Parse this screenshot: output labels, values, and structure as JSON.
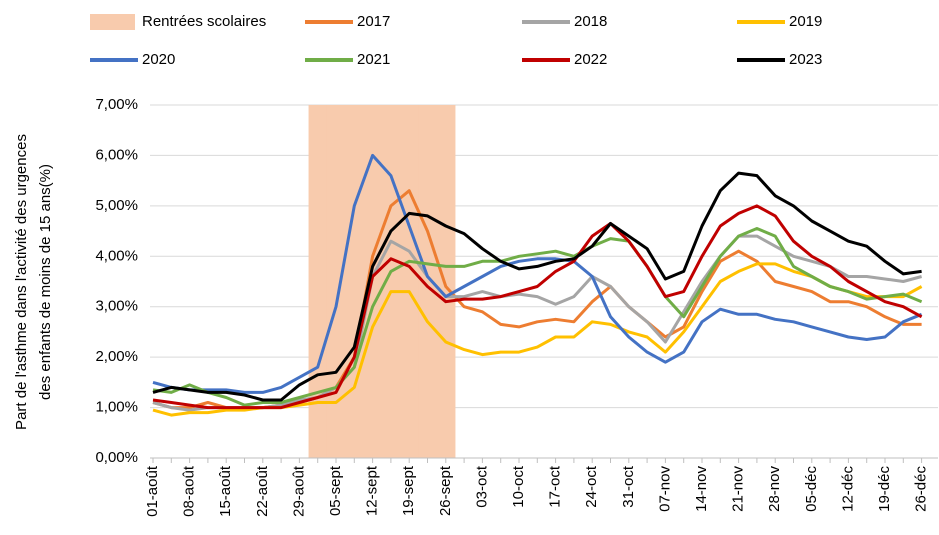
{
  "chart_data": {
    "type": "line",
    "ylabel": [
      "Part de l'asthme dans l'activité des urgences",
      "des enfants de moins de 15 ans(%)"
    ],
    "categories": [
      "01-août",
      null,
      "08-août",
      null,
      "15-août",
      null,
      "22-août",
      null,
      "29-août",
      null,
      "05-sept",
      null,
      "12-sept",
      null,
      "19-sept",
      null,
      "26-sept",
      null,
      "03-oct",
      null,
      "10-oct",
      null,
      "17-oct",
      null,
      "24-oct",
      null,
      "31-oct",
      null,
      "07-nov",
      null,
      "14-nov",
      null,
      "21-nov",
      null,
      "28-nov",
      null,
      "05-déc",
      null,
      "12-déc",
      null,
      "19-déc",
      null,
      "26-déc"
    ],
    "ylim": [
      0,
      7
    ],
    "yticks": [
      {
        "value": 0,
        "label": "0,00%"
      },
      {
        "value": 1,
        "label": "1,00%"
      },
      {
        "value": 2,
        "label": "2,00%"
      },
      {
        "value": 3,
        "label": "3,00%"
      },
      {
        "value": 4,
        "label": "4,00%"
      },
      {
        "value": 5,
        "label": "5,00%"
      },
      {
        "value": 6,
        "label": "6,00%"
      },
      {
        "value": 7,
        "label": "7,00%"
      }
    ],
    "grid": true,
    "series": [
      {
        "name": "Rentrées scolaires",
        "type": "bar",
        "color": "#f8cbad",
        "values": [
          null,
          null,
          null,
          null,
          null,
          null,
          null,
          null,
          null,
          7,
          7,
          7,
          7,
          7,
          7,
          7,
          7,
          null,
          null,
          null,
          null,
          null,
          null,
          null,
          null,
          null,
          null,
          null,
          null,
          null,
          null,
          null,
          null,
          null,
          null,
          null,
          null,
          null,
          null,
          null,
          null,
          null,
          null
        ]
      },
      {
        "name": "2017",
        "color": "#ed7d31",
        "values": [
          1.1,
          1.0,
          1.0,
          1.1,
          1.0,
          1.0,
          1.0,
          1.05,
          1.1,
          1.2,
          1.4,
          2.0,
          4.0,
          5.0,
          5.3,
          4.5,
          3.4,
          3.0,
          2.9,
          2.65,
          2.6,
          2.7,
          2.75,
          2.7,
          3.1,
          3.4,
          3.0,
          2.7,
          2.4,
          2.6,
          3.3,
          3.9,
          4.1,
          3.9,
          3.5,
          3.4,
          3.3,
          3.1,
          3.1,
          3.0,
          2.8,
          2.65,
          2.65
        ]
      },
      {
        "name": "2018",
        "color": "#a5a5a5",
        "values": [
          1.1,
          1.0,
          0.95,
          1.0,
          1.0,
          1.0,
          1.0,
          1.05,
          1.15,
          1.2,
          1.4,
          1.8,
          3.6,
          4.3,
          4.1,
          3.6,
          3.2,
          3.2,
          3.3,
          3.2,
          3.25,
          3.2,
          3.05,
          3.2,
          3.6,
          3.4,
          3.0,
          2.7,
          2.3,
          2.9,
          3.5,
          4.0,
          4.4,
          4.4,
          4.2,
          4.0,
          3.9,
          3.8,
          3.6,
          3.6,
          3.55,
          3.5,
          3.6
        ]
      },
      {
        "name": "2019",
        "color": "#ffc000",
        "values": [
          0.95,
          0.85,
          0.9,
          0.9,
          0.95,
          0.95,
          1.0,
          1.0,
          1.05,
          1.1,
          1.1,
          1.4,
          2.6,
          3.3,
          3.3,
          2.7,
          2.3,
          2.15,
          2.05,
          2.1,
          2.1,
          2.2,
          2.4,
          2.4,
          2.7,
          2.65,
          2.5,
          2.4,
          2.1,
          2.5,
          3.0,
          3.5,
          3.7,
          3.85,
          3.85,
          3.7,
          3.6,
          3.4,
          3.3,
          3.2,
          3.2,
          3.2,
          3.4
        ]
      },
      {
        "name": "2020",
        "color": "#4472c4",
        "values": [
          1.5,
          1.4,
          1.35,
          1.35,
          1.35,
          1.3,
          1.3,
          1.4,
          1.6,
          1.8,
          3.0,
          5.0,
          6.0,
          5.6,
          4.6,
          3.6,
          3.2,
          3.4,
          3.6,
          3.8,
          3.9,
          3.95,
          3.95,
          3.9,
          3.6,
          2.8,
          2.4,
          2.1,
          1.9,
          2.1,
          2.7,
          2.95,
          2.85,
          2.85,
          2.75,
          2.7,
          2.6,
          2.5,
          2.4,
          2.35,
          2.4,
          2.7,
          2.85
        ]
      },
      {
        "name": "2021",
        "color": "#70ad47",
        "values": [
          1.35,
          1.3,
          1.45,
          1.3,
          1.2,
          1.05,
          1.1,
          1.1,
          1.2,
          1.3,
          1.4,
          1.8,
          3.0,
          3.7,
          3.9,
          3.85,
          3.8,
          3.8,
          3.9,
          3.9,
          4.0,
          4.05,
          4.1,
          4.0,
          4.2,
          4.35,
          4.3,
          3.8,
          3.2,
          2.8,
          3.4,
          4.0,
          4.4,
          4.55,
          4.4,
          3.8,
          3.6,
          3.4,
          3.3,
          3.15,
          3.2,
          3.25,
          3.1
        ]
      },
      {
        "name": "2022",
        "color": "#c00000",
        "values": [
          1.15,
          1.1,
          1.05,
          1.0,
          1.0,
          1.0,
          1.0,
          1.0,
          1.1,
          1.2,
          1.3,
          2.0,
          3.6,
          3.95,
          3.8,
          3.4,
          3.1,
          3.15,
          3.15,
          3.2,
          3.3,
          3.4,
          3.7,
          3.9,
          4.4,
          4.65,
          4.3,
          3.8,
          3.2,
          3.3,
          4.0,
          4.6,
          4.85,
          5.0,
          4.8,
          4.3,
          4.0,
          3.8,
          3.5,
          3.3,
          3.1,
          3.0,
          2.8
        ]
      },
      {
        "name": "2023",
        "color": "#000000",
        "values": [
          1.3,
          1.4,
          1.35,
          1.3,
          1.3,
          1.25,
          1.15,
          1.15,
          1.45,
          1.65,
          1.7,
          2.2,
          3.8,
          4.5,
          4.85,
          4.8,
          4.6,
          4.45,
          4.15,
          3.9,
          3.75,
          3.8,
          3.9,
          3.95,
          4.2,
          4.65,
          4.4,
          4.15,
          3.55,
          3.7,
          4.6,
          5.3,
          5.65,
          5.6,
          5.2,
          5.0,
          4.7,
          4.5,
          4.3,
          4.2,
          3.9,
          3.65,
          3.7
        ]
      }
    ]
  }
}
